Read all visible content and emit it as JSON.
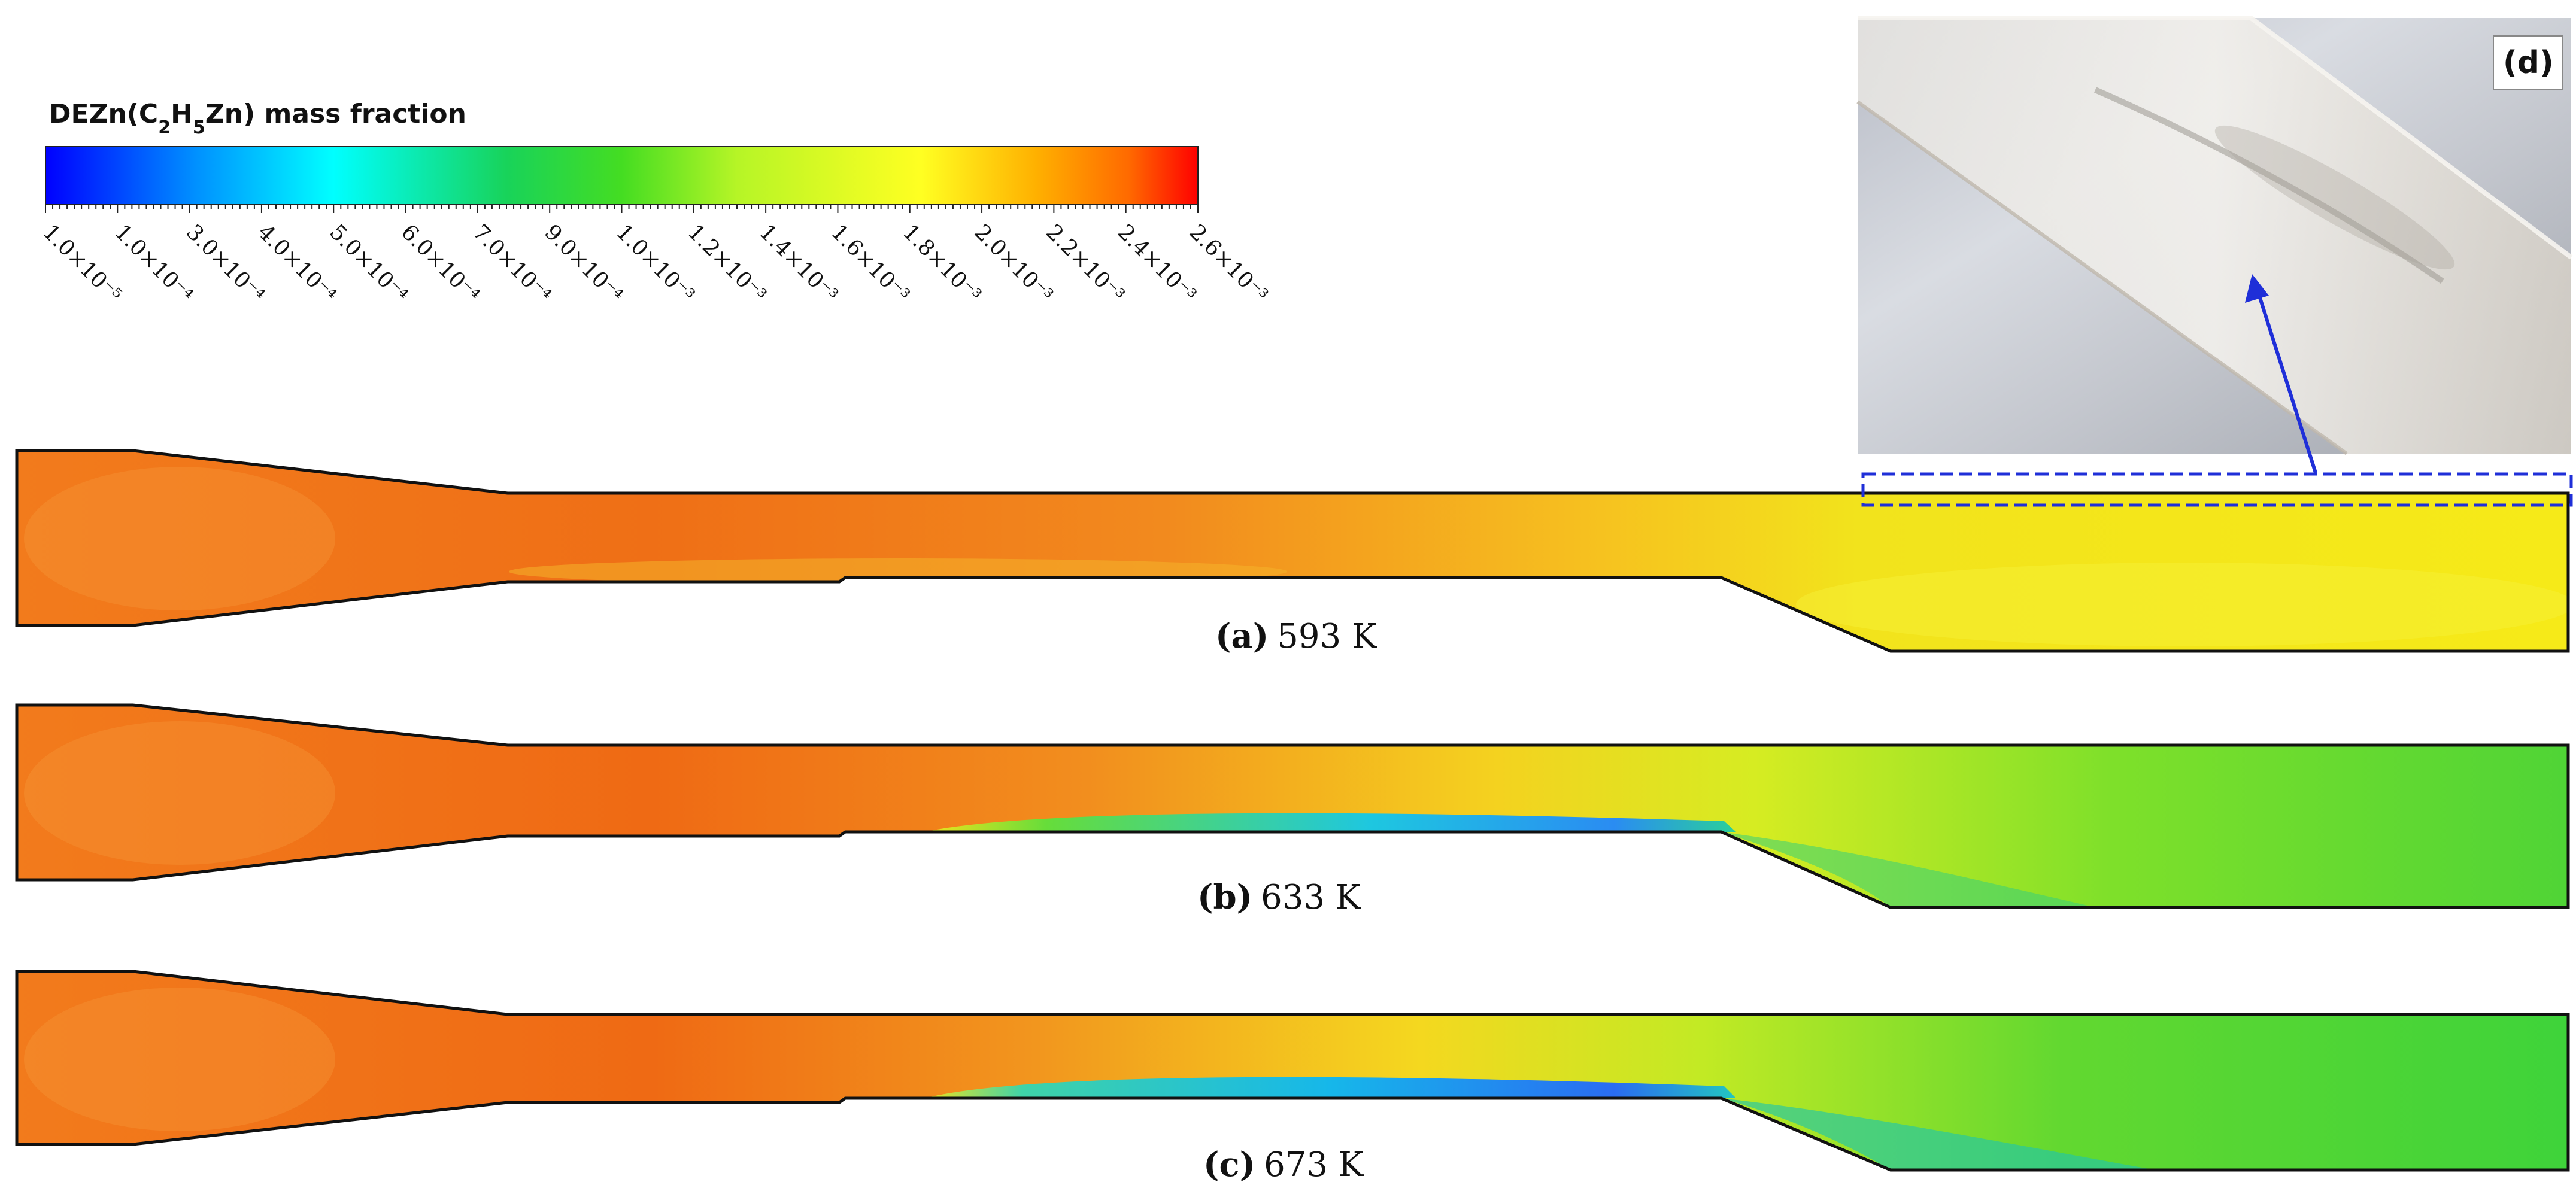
{
  "colorbar": {
    "title_main": "DEZn(C",
    "title_sub1": "2",
    "title_mid": "H",
    "title_sub2": "5",
    "title_end": "Zn) mass fraction",
    "tick_labels": [
      "1.0×10⁻⁵",
      "1.0×10⁻⁴",
      "3.0×10⁻⁴",
      "4.0×10⁻⁴",
      "5.0×10⁻⁴",
      "6.0×10⁻⁴",
      "7.0×10⁻⁴",
      "9.0×10⁻⁴",
      "1.0×10⁻³",
      "1.2×10⁻³",
      "1.4×10⁻³",
      "1.6×10⁻³",
      "1.8×10⁻³",
      "2.0×10⁻³",
      "2.2×10⁻³",
      "2.4×10⁻³",
      "2.6×10⁻³"
    ],
    "colors": [
      "#0000ff",
      "#007fff",
      "#00ffff",
      "#00e07a",
      "#22dd22",
      "#7fef1e",
      "#e8ff22",
      "#ffb000",
      "#ff6a00",
      "#ff0000"
    ]
  },
  "panels": [
    {
      "label": "(a)",
      "value": "593 K"
    },
    {
      "label": "(b)",
      "value": "633 K"
    },
    {
      "label": "(c)",
      "value": "673 K"
    }
  ],
  "photo": {
    "label": "(d)"
  },
  "field_colors": {
    "orange": "#f27b1c",
    "red_orange": "#ee5f12",
    "yellow": "#f2ea1c",
    "green": "#3ed33a",
    "cyan": "#1ec7e0",
    "blue": "#2a6cf2",
    "outline": "#111111",
    "arrow": "#1f2fd8"
  }
}
